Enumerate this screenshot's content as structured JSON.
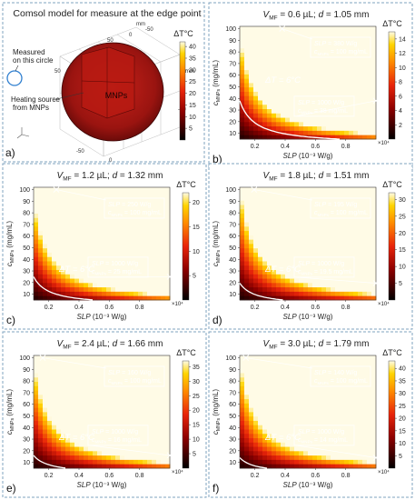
{
  "panels": [
    {
      "id": "a",
      "letter": "a)",
      "title": "Comsol model for measure at the edge point",
      "labels": {
        "measured": "Measured",
        "measured2": "on this circle",
        "heating": "Heating source",
        "heating2": "from MNPs",
        "mnps": "MNPs",
        "unit_mm": "mm"
      },
      "axis_ticks": [
        "50",
        "0",
        "-50",
        "50",
        "0",
        "-50",
        "0",
        "-50"
      ],
      "colorbar": {
        "label": "ΔT°C",
        "ticks": [
          "40",
          "35",
          "30",
          "25",
          "20",
          "15",
          "10",
          "5"
        ],
        "range": [
          0,
          42
        ]
      }
    }
  ],
  "heatmap_panels": [
    {
      "id": "b",
      "letter": "b)",
      "vmf": "0.6 µL",
      "d": "1.05 mm",
      "ann1_slp": "380",
      "ann1_c": "100 mg/mL",
      "ann2_slp": "1000",
      "ann2_c": "38 mg/mL",
      "cbar_ticks": [
        "14",
        "12",
        "10",
        "8",
        "6",
        "4",
        "2"
      ],
      "cbar_max": 15
    },
    {
      "id": "c",
      "letter": "c)",
      "vmf": "1.2 µL",
      "d": "1.32 mm",
      "ann1_slp": "250",
      "ann1_c": "100 mg/mL",
      "ann2_slp": "1000",
      "ann2_c": "25 mg/mL",
      "cbar_ticks": [
        "20",
        "15",
        "10",
        "5"
      ],
      "cbar_max": 22
    },
    {
      "id": "d",
      "letter": "d)",
      "vmf": "1.8 µL",
      "d": "1.51 mm",
      "ann1_slp": "195",
      "ann1_c": "100 mg/mL",
      "ann2_slp": "1000",
      "ann2_c": "19.5 mg/mL",
      "cbar_ticks": [
        "30",
        "25",
        "20",
        "15",
        "10",
        "5"
      ],
      "cbar_max": 32
    },
    {
      "id": "e",
      "letter": "e)",
      "vmf": "2.4 µL",
      "d": "1.66 mm",
      "ann1_slp": "160",
      "ann1_c": "100 mg/mL",
      "ann2_slp": "1000",
      "ann2_c": "16 mg/mL",
      "cbar_ticks": [
        "35",
        "30",
        "25",
        "20",
        "15",
        "10",
        "5"
      ],
      "cbar_max": 37
    },
    {
      "id": "f",
      "letter": "f)",
      "vmf": "3.0 µL",
      "d": "1.79 mm",
      "ann1_slp": "140",
      "ann1_c": "100 mg/mL",
      "ann2_slp": "1000",
      "ann2_c": "14 mg/mL",
      "cbar_ticks": [
        "40",
        "35",
        "30",
        "25",
        "20",
        "15",
        "10",
        "5"
      ],
      "cbar_max": 43
    }
  ],
  "common": {
    "vmf_label": "V",
    "vmf_sub": "MF",
    "d_label": "d",
    "xlabel": "SLP (10⁻³ W/g)",
    "ylabel": "c",
    "ylabel_sub": "MNPs",
    "ylabel_unit": "(mg/mL)",
    "x_ticks": [
      "0.2",
      "0.4",
      "0.6",
      "0.8"
    ],
    "x_mult": "×10⁴",
    "y_ticks": [
      "100",
      "90",
      "80",
      "70",
      "60",
      "50",
      "40",
      "30",
      "20",
      "10"
    ],
    "dT_text": "ΔT = 6°C",
    "slp_prefix": "SLP",
    "slp_unit": "W/g",
    "c_prefix": "c",
    "c_sub": "MNPs",
    "cbar_label": "ΔT°C",
    "colors": {
      "background_panel": "#ffffff",
      "frame_dash": "#7fa3bf",
      "iso_line": "#ffffff",
      "ann_box": "#ffffff",
      "ann_text": "#ffffff"
    }
  },
  "chart_data": [
    {
      "type": "heatmap",
      "panel": "b",
      "title": "V_MF = 0.6 µL; d = 1.05 mm",
      "xlabel": "SLP (10⁻³ W/g)",
      "ylabel": "c_MNPs (mg/mL)",
      "xlim": [
        1000,
        10000
      ],
      "ylim": [
        5,
        102
      ],
      "colorbar_label": "ΔT°C",
      "colorbar_range": [
        0,
        15
      ],
      "annotations": [
        {
          "text": "SLP = 380 W/g, c_MNPs = 100 mg/mL",
          "x": 3800,
          "y": 100
        },
        {
          "text": "SLP = 1000 W/g, c_MNPs = 38 mg/mL",
          "x": 10000,
          "y": 38
        }
      ],
      "iso_line": {
        "label": "ΔT = 6°C",
        "slp_times_c": 38000
      }
    },
    {
      "type": "heatmap",
      "panel": "c",
      "title": "V_MF = 1.2 µL; d = 1.32 mm",
      "xlabel": "SLP (10⁻³ W/g)",
      "ylabel": "c_MNPs (mg/mL)",
      "xlim": [
        1000,
        10000
      ],
      "ylim": [
        5,
        102
      ],
      "colorbar_label": "ΔT°C",
      "colorbar_range": [
        0,
        22
      ],
      "annotations": [
        {
          "text": "SLP = 250 W/g, c_MNPs = 100 mg/mL",
          "x": 2500,
          "y": 100
        },
        {
          "text": "SLP = 1000 W/g, c_MNPs = 25 mg/mL",
          "x": 10000,
          "y": 25
        }
      ],
      "iso_line": {
        "label": "ΔT = 6°C",
        "slp_times_c": 25000
      }
    },
    {
      "type": "heatmap",
      "panel": "d",
      "title": "V_MF = 1.8 µL; d = 1.51 mm",
      "xlabel": "SLP (10⁻³ W/g)",
      "ylabel": "c_MNPs (mg/mL)",
      "xlim": [
        1000,
        10000
      ],
      "ylim": [
        5,
        102
      ],
      "colorbar_label": "ΔT°C",
      "colorbar_range": [
        0,
        32
      ],
      "annotations": [
        {
          "text": "SLP = 195 W/g, c_MNPs = 100 mg/mL",
          "x": 1950,
          "y": 100
        },
        {
          "text": "SLP = 1000 W/g, c_MNPs = 19.5 mg/mL",
          "x": 10000,
          "y": 19.5
        }
      ],
      "iso_line": {
        "label": "ΔT = 6°C",
        "slp_times_c": 19500
      }
    },
    {
      "type": "heatmap",
      "panel": "e",
      "title": "V_MF = 2.4 µL; d = 1.66 mm",
      "xlabel": "SLP (10⁻³ W/g)",
      "ylabel": "c_MNPs (mg/mL)",
      "xlim": [
        1000,
        10000
      ],
      "ylim": [
        5,
        102
      ],
      "colorbar_label": "ΔT°C",
      "colorbar_range": [
        0,
        37
      ],
      "annotations": [
        {
          "text": "SLP = 160 W/g, c_MNPs = 100 mg/mL",
          "x": 1600,
          "y": 100
        },
        {
          "text": "SLP = 1000 W/g, c_MNPs = 16 mg/mL",
          "x": 10000,
          "y": 16
        }
      ],
      "iso_line": {
        "label": "ΔT = 6°C",
        "slp_times_c": 16000
      }
    },
    {
      "type": "heatmap",
      "panel": "f",
      "title": "V_MF = 3.0 µL; d = 1.79 mm",
      "xlabel": "SLP (10⁻³ W/g)",
      "ylabel": "c_MNPs (mg/mL)",
      "xlim": [
        1000,
        10000
      ],
      "ylim": [
        5,
        102
      ],
      "colorbar_label": "ΔT°C",
      "colorbar_range": [
        0,
        43
      ],
      "annotations": [
        {
          "text": "SLP = 140 W/g, c_MNPs = 100 mg/mL",
          "x": 1400,
          "y": 100
        },
        {
          "text": "SLP = 1000 W/g, c_MNPs = 14 mg/mL",
          "x": 10000,
          "y": 14
        }
      ],
      "iso_line": {
        "label": "ΔT = 6°C",
        "slp_times_c": 14000
      }
    }
  ]
}
